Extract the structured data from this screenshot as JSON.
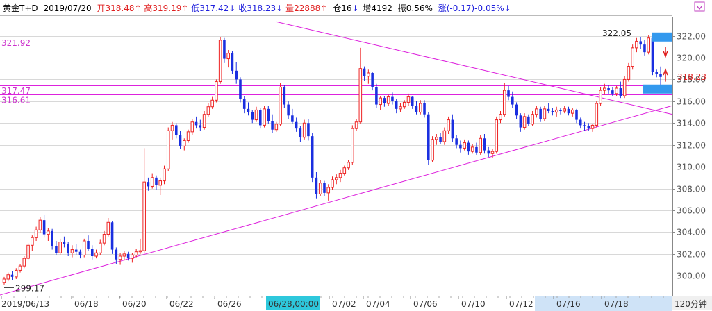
{
  "header": {
    "instrument": "黄金T+D",
    "date": "2019/07/20",
    "open_label": "开",
    "open": "318.48",
    "high_label": "高",
    "high": "319.19",
    "low_label": "低",
    "low": "317.42",
    "close_label": "收",
    "close": "318.23",
    "volume_label": "量",
    "volume": "22888",
    "position_label": "仓",
    "position": "16",
    "increase_label": "增",
    "increase": "4192",
    "amplitude_label": "振",
    "amplitude": "0.56%",
    "change_label": "涨",
    "change": "(-0.17)",
    "change_pct": "-0.05%"
  },
  "colors": {
    "up": "#ee2222",
    "down": "#1a2fe0",
    "trendline": "#dd22dd",
    "header_red": "#e02020",
    "header_blue": "#2222dd",
    "grid": "#d8d8d8",
    "highlight_box": "#3399ee",
    "cursor_label_bg": "#2ec8dc",
    "axis_bar_bg": "#cfe3f7"
  },
  "chart_data": {
    "type": "candlestick",
    "ylim": [
      299,
      323.5
    ],
    "y_ticks": [
      "322.00",
      "320.00",
      "318.00",
      "316.00",
      "314.00",
      "312.00",
      "310.00",
      "308.00",
      "306.00",
      "304.00",
      "302.00",
      "300.00"
    ],
    "current_price_label": "318.23",
    "x_ticks": [
      "2019/06/13",
      "06/18",
      "06/20",
      "06/22",
      "06/26",
      "07/02",
      "07/04",
      "07/06",
      "07/10",
      "07/12",
      "07/16",
      "07/18"
    ],
    "cursor_label": "06/28,00:00",
    "period_label": "120分钟",
    "annotations": [
      {
        "text": "321.92",
        "price": 321.92,
        "style": "hline"
      },
      {
        "text": "317.47",
        "price": 317.47,
        "style": "hline"
      },
      {
        "text": "316.61",
        "price": 316.61,
        "style": "hline"
      },
      {
        "text": "322.05",
        "price": 322.05,
        "style": "peak"
      },
      {
        "text": "299.17",
        "price": 299.17,
        "style": "low"
      }
    ],
    "trendlines": [
      {
        "from": [
          "06/13",
          299.0
        ],
        "to": [
          "07/20",
          315.6
        ]
      },
      {
        "from": [
          "06/24",
          321.2
        ],
        "to": [
          "07/20",
          314.8
        ]
      }
    ],
    "candles": [
      [
        299.4,
        299.9,
        299.2,
        299.7
      ],
      [
        299.7,
        300.3,
        299.5,
        300.1
      ],
      [
        300.1,
        300.4,
        299.6,
        299.9
      ],
      [
        299.9,
        300.7,
        299.7,
        300.5
      ],
      [
        300.5,
        301.1,
        300.3,
        300.9
      ],
      [
        300.9,
        301.8,
        300.7,
        301.6
      ],
      [
        301.6,
        303.0,
        301.4,
        302.8
      ],
      [
        302.8,
        303.7,
        302.3,
        303.5
      ],
      [
        303.5,
        304.5,
        303.2,
        304.2
      ],
      [
        304.2,
        305.4,
        303.9,
        305.1
      ],
      [
        305.1,
        305.6,
        303.5,
        303.8
      ],
      [
        303.8,
        304.4,
        303.2,
        304.1
      ],
      [
        304.1,
        304.3,
        302.4,
        302.7
      ],
      [
        302.7,
        303.2,
        301.9,
        302.1
      ],
      [
        302.1,
        303.4,
        301.9,
        303.1
      ],
      [
        303.1,
        303.6,
        302.6,
        302.9
      ],
      [
        302.9,
        303.1,
        301.8,
        302.1
      ],
      [
        302.1,
        302.8,
        301.7,
        302.4
      ],
      [
        302.4,
        302.9,
        301.9,
        302.2
      ],
      [
        302.2,
        302.4,
        301.6,
        301.9
      ],
      [
        301.9,
        303.4,
        301.7,
        303.2
      ],
      [
        303.2,
        303.7,
        302.3,
        302.5
      ],
      [
        302.5,
        302.8,
        301.5,
        301.8
      ],
      [
        301.8,
        302.4,
        301.6,
        302.1
      ],
      [
        302.1,
        303.3,
        301.9,
        303.0
      ],
      [
        303.0,
        304.1,
        302.8,
        303.8
      ],
      [
        303.8,
        305.3,
        303.6,
        304.9
      ],
      [
        304.9,
        305.0,
        302.0,
        302.4
      ],
      [
        302.4,
        302.6,
        301.1,
        301.5
      ],
      [
        301.5,
        302.1,
        301.0,
        301.8
      ],
      [
        301.8,
        302.3,
        301.4,
        302.0
      ],
      [
        302.0,
        302.2,
        301.4,
        301.6
      ],
      [
        301.6,
        302.1,
        301.2,
        301.9
      ],
      [
        301.9,
        302.5,
        301.7,
        302.2
      ],
      [
        302.2,
        303.4,
        302.0,
        302.3
      ],
      [
        302.3,
        311.7,
        302.1,
        308.6
      ],
      [
        308.6,
        309.0,
        307.8,
        308.2
      ],
      [
        308.2,
        309.4,
        308.0,
        309.0
      ],
      [
        309.0,
        309.2,
        307.9,
        308.3
      ],
      [
        308.3,
        309.0,
        307.4,
        308.7
      ],
      [
        308.7,
        310.1,
        308.4,
        309.8
      ],
      [
        309.8,
        313.6,
        309.6,
        313.3
      ],
      [
        313.3,
        314.1,
        312.5,
        313.8
      ],
      [
        313.8,
        314.0,
        312.6,
        312.9
      ],
      [
        312.9,
        313.3,
        311.6,
        311.9
      ],
      [
        311.9,
        312.6,
        311.5,
        312.4
      ],
      [
        312.4,
        313.4,
        312.2,
        313.2
      ],
      [
        313.2,
        314.4,
        312.9,
        314.1
      ],
      [
        314.1,
        314.6,
        313.5,
        313.8
      ],
      [
        313.8,
        314.3,
        313.3,
        313.6
      ],
      [
        313.6,
        315.1,
        313.4,
        314.8
      ],
      [
        314.8,
        315.8,
        314.6,
        315.5
      ],
      [
        315.5,
        316.4,
        315.3,
        316.1
      ],
      [
        316.1,
        318.0,
        315.9,
        317.8
      ],
      [
        317.8,
        321.9,
        317.6,
        321.6
      ],
      [
        321.6,
        321.8,
        319.5,
        319.9
      ],
      [
        319.9,
        320.7,
        319.1,
        320.4
      ],
      [
        320.4,
        320.6,
        318.5,
        318.8
      ],
      [
        318.8,
        319.6,
        317.6,
        318.0
      ],
      [
        318.0,
        318.2,
        315.9,
        316.2
      ],
      [
        316.2,
        316.5,
        314.9,
        315.3
      ],
      [
        315.3,
        315.9,
        314.7,
        315.0
      ],
      [
        315.0,
        315.2,
        314.0,
        314.3
      ],
      [
        314.3,
        315.5,
        314.1,
        315.2
      ],
      [
        315.2,
        315.4,
        313.5,
        313.8
      ],
      [
        313.8,
        315.6,
        313.6,
        315.3
      ],
      [
        315.3,
        315.6,
        313.9,
        314.2
      ],
      [
        314.2,
        314.8,
        313.1,
        313.4
      ],
      [
        313.4,
        314.1,
        313.2,
        313.9
      ],
      [
        313.9,
        317.7,
        313.7,
        317.3
      ],
      [
        317.3,
        317.5,
        315.4,
        315.7
      ],
      [
        315.7,
        316.0,
        314.4,
        314.7
      ],
      [
        314.7,
        315.3,
        313.9,
        314.1
      ],
      [
        314.1,
        314.5,
        313.2,
        313.5
      ],
      [
        313.5,
        313.7,
        312.3,
        312.7
      ],
      [
        312.7,
        314.3,
        312.5,
        314.0
      ],
      [
        314.0,
        314.4,
        312.4,
        312.8
      ],
      [
        312.8,
        313.1,
        308.6,
        309.0
      ],
      [
        309.0,
        309.5,
        307.1,
        307.5
      ],
      [
        307.5,
        308.8,
        307.3,
        308.5
      ],
      [
        308.5,
        308.7,
        307.3,
        307.6
      ],
      [
        307.6,
        308.4,
        306.9,
        308.1
      ],
      [
        308.1,
        309.1,
        307.9,
        308.8
      ],
      [
        308.8,
        309.3,
        308.4,
        309.0
      ],
      [
        309.0,
        309.7,
        308.6,
        309.4
      ],
      [
        309.4,
        310.1,
        309.2,
        309.9
      ],
      [
        309.9,
        310.6,
        309.7,
        310.4
      ],
      [
        310.4,
        313.8,
        310.2,
        313.5
      ],
      [
        313.5,
        314.4,
        313.3,
        314.1
      ],
      [
        314.1,
        320.9,
        313.9,
        319.0
      ],
      [
        319.0,
        319.2,
        317.9,
        318.3
      ],
      [
        318.3,
        318.9,
        317.6,
        318.6
      ],
      [
        318.6,
        318.7,
        317.0,
        317.3
      ],
      [
        317.3,
        317.6,
        315.4,
        315.7
      ],
      [
        315.7,
        316.5,
        315.2,
        316.3
      ],
      [
        316.3,
        316.5,
        315.5,
        315.8
      ],
      [
        315.8,
        316.6,
        315.6,
        316.4
      ],
      [
        316.4,
        316.8,
        315.7,
        316.0
      ],
      [
        316.0,
        316.2,
        314.9,
        315.3
      ],
      [
        315.3,
        315.8,
        315.0,
        315.5
      ],
      [
        315.5,
        316.1,
        315.3,
        315.9
      ],
      [
        315.9,
        316.7,
        315.6,
        316.4
      ],
      [
        316.4,
        316.5,
        315.3,
        315.6
      ],
      [
        315.6,
        316.0,
        314.8,
        315.0
      ],
      [
        315.0,
        316.1,
        314.8,
        315.8
      ],
      [
        315.8,
        316.1,
        314.5,
        314.8
      ],
      [
        314.8,
        315.0,
        310.2,
        310.6
      ],
      [
        310.6,
        312.8,
        310.4,
        312.5
      ],
      [
        312.5,
        313.0,
        312.0,
        312.7
      ],
      [
        312.7,
        313.1,
        312.1,
        312.3
      ],
      [
        312.3,
        313.6,
        312.0,
        313.3
      ],
      [
        313.3,
        314.6,
        313.0,
        314.3
      ],
      [
        314.3,
        314.8,
        312.3,
        312.6
      ],
      [
        312.6,
        312.9,
        311.7,
        312.0
      ],
      [
        312.0,
        312.4,
        311.3,
        311.7
      ],
      [
        311.7,
        312.5,
        311.5,
        312.2
      ],
      [
        312.2,
        312.4,
        311.1,
        311.4
      ],
      [
        311.4,
        312.1,
        311.2,
        311.8
      ],
      [
        311.8,
        312.2,
        311.1,
        311.3
      ],
      [
        311.3,
        312.9,
        311.1,
        312.6
      ],
      [
        312.6,
        313.0,
        311.2,
        311.5
      ],
      [
        311.5,
        311.8,
        310.9,
        311.2
      ],
      [
        311.2,
        311.6,
        310.8,
        311.4
      ],
      [
        311.4,
        314.6,
        311.2,
        314.3
      ],
      [
        314.3,
        315.1,
        314.0,
        314.8
      ],
      [
        314.8,
        317.7,
        314.6,
        317.0
      ],
      [
        317.0,
        317.4,
        316.1,
        316.4
      ],
      [
        316.4,
        316.9,
        315.4,
        315.7
      ],
      [
        315.7,
        315.9,
        314.4,
        314.7
      ],
      [
        314.7,
        314.9,
        313.2,
        313.6
      ],
      [
        313.6,
        314.9,
        313.4,
        314.6
      ],
      [
        314.6,
        314.8,
        313.7,
        313.9
      ],
      [
        313.9,
        315.1,
        313.7,
        314.8
      ],
      [
        314.8,
        315.6,
        314.5,
        315.3
      ],
      [
        315.3,
        315.5,
        314.1,
        314.4
      ],
      [
        314.4,
        315.6,
        314.2,
        315.3
      ],
      [
        315.3,
        315.8,
        314.9,
        315.1
      ],
      [
        315.1,
        315.4,
        314.7,
        315.0
      ],
      [
        315.0,
        315.5,
        314.6,
        315.2
      ],
      [
        315.2,
        315.4,
        314.8,
        315.1
      ],
      [
        315.1,
        315.6,
        314.9,
        315.3
      ],
      [
        315.3,
        315.5,
        314.7,
        314.9
      ],
      [
        314.9,
        315.4,
        314.6,
        315.2
      ],
      [
        315.2,
        315.3,
        314.0,
        314.3
      ],
      [
        314.3,
        314.5,
        313.5,
        313.8
      ],
      [
        313.8,
        314.1,
        313.3,
        313.7
      ],
      [
        313.7,
        314.0,
        313.3,
        313.5
      ],
      [
        313.5,
        313.9,
        313.2,
        313.8
      ],
      [
        313.8,
        316.0,
        313.6,
        315.8
      ],
      [
        315.8,
        317.3,
        315.6,
        317.0
      ],
      [
        317.0,
        317.6,
        316.6,
        317.2
      ],
      [
        317.2,
        317.5,
        316.7,
        317.0
      ],
      [
        317.0,
        317.3,
        316.5,
        316.7
      ],
      [
        316.7,
        317.4,
        316.5,
        317.2
      ],
      [
        317.2,
        317.8,
        316.3,
        316.5
      ],
      [
        316.5,
        318.3,
        316.3,
        318.0
      ],
      [
        318.0,
        319.5,
        317.8,
        319.2
      ],
      [
        319.2,
        321.2,
        318.9,
        320.9
      ],
      [
        320.9,
        321.8,
        320.5,
        321.5
      ],
      [
        321.5,
        321.9,
        320.8,
        321.2
      ],
      [
        321.2,
        321.6,
        320.2,
        320.5
      ],
      [
        320.5,
        322.05,
        320.3,
        321.8
      ],
      [
        321.8,
        322.0,
        318.4,
        318.7
      ],
      [
        318.7,
        318.9,
        318.2,
        318.5
      ],
      [
        318.48,
        319.19,
        317.42,
        318.23
      ]
    ]
  }
}
